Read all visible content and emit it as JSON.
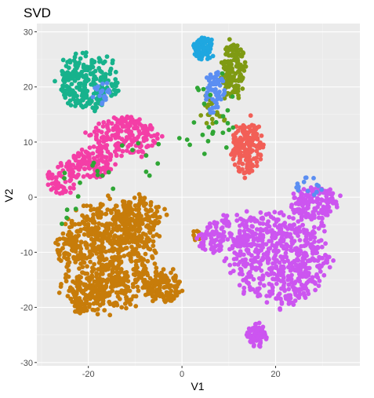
{
  "chart_data": {
    "type": "scatter",
    "title": "SVD",
    "xlabel": "V1",
    "ylabel": "V2",
    "xlim": [
      -31,
      38
    ],
    "ylim": [
      -30.6,
      31.5
    ],
    "x_ticks": [
      -20,
      0,
      20
    ],
    "y_ticks": [
      -30,
      -20,
      -10,
      0,
      10,
      20,
      30
    ],
    "grid": true,
    "legend": "none",
    "panel_background": "#ebebeb",
    "series": [
      {
        "color": "#c77c0a",
        "clusters": [
          {
            "cx": -16,
            "cy": -11,
            "rx": 10,
            "ry": 9,
            "n": 700
          },
          {
            "cx": -9,
            "cy": -4,
            "rx": 5,
            "ry": 4,
            "n": 150
          },
          {
            "cx": -4,
            "cy": -16,
            "rx": 4,
            "ry": 3,
            "n": 120
          },
          {
            "cx": -20,
            "cy": -18,
            "rx": 4,
            "ry": 3,
            "n": 80
          },
          {
            "cx": 3,
            "cy": -7,
            "rx": 1,
            "ry": 1,
            "n": 10
          }
        ]
      },
      {
        "color": "#cc55f0",
        "clusters": [
          {
            "cx": 21,
            "cy": -11,
            "rx": 10,
            "ry": 8,
            "n": 550
          },
          {
            "cx": 28,
            "cy": -1,
            "rx": 5,
            "ry": 3,
            "n": 150
          },
          {
            "cx": 12,
            "cy": -6,
            "rx": 6,
            "ry": 3,
            "n": 100
          },
          {
            "cx": 16,
            "cy": -25,
            "rx": 2,
            "ry": 2,
            "n": 60
          },
          {
            "cx": 6,
            "cy": -8,
            "rx": 3,
            "ry": 2,
            "n": 40
          }
        ]
      },
      {
        "color": "#f43ea6",
        "clusters": [
          {
            "cx": -12,
            "cy": 11,
            "rx": 7,
            "ry": 3.5,
            "n": 200
          },
          {
            "cx": -20,
            "cy": 6,
            "rx": 5,
            "ry": 2.5,
            "n": 130
          },
          {
            "cx": -26,
            "cy": 3,
            "rx": 3,
            "ry": 2.5,
            "n": 50
          }
        ]
      },
      {
        "color": "#17b28c",
        "clusters": [
          {
            "cx": -20,
            "cy": 21,
            "rx": 6,
            "ry": 5,
            "n": 260
          }
        ]
      },
      {
        "color": "#f25f57",
        "clusters": [
          {
            "cx": 14,
            "cy": 9,
            "rx": 3,
            "ry": 4.5,
            "n": 180
          }
        ]
      },
      {
        "color": "#7f9a13",
        "clusters": [
          {
            "cx": 11,
            "cy": 23,
            "rx": 2.5,
            "ry": 5,
            "n": 150
          },
          {
            "cx": 7,
            "cy": 16,
            "rx": 3,
            "ry": 3,
            "n": 25
          }
        ]
      },
      {
        "color": "#1fa7e0",
        "clusters": [
          {
            "cx": 4.5,
            "cy": 27,
            "rx": 2,
            "ry": 2,
            "n": 90
          }
        ]
      },
      {
        "color": "#5b8ef2",
        "clusters": [
          {
            "cx": 7,
            "cy": 19,
            "rx": 2,
            "ry": 4,
            "n": 60
          },
          {
            "cx": -17,
            "cy": 19,
            "rx": 2,
            "ry": 2,
            "n": 20
          },
          {
            "cx": 27,
            "cy": 2,
            "rx": 3,
            "ry": 2,
            "n": 15
          }
        ]
      },
      {
        "color": "#2fa635",
        "clusters": [
          {
            "cx": 6,
            "cy": 13,
            "rx": 6,
            "ry": 8,
            "n": 25
          },
          {
            "cx": -12,
            "cy": 6,
            "rx": 8,
            "ry": 5,
            "n": 15
          },
          {
            "cx": -24,
            "cy": 0,
            "rx": 4,
            "ry": 6,
            "n": 8
          }
        ]
      }
    ]
  }
}
